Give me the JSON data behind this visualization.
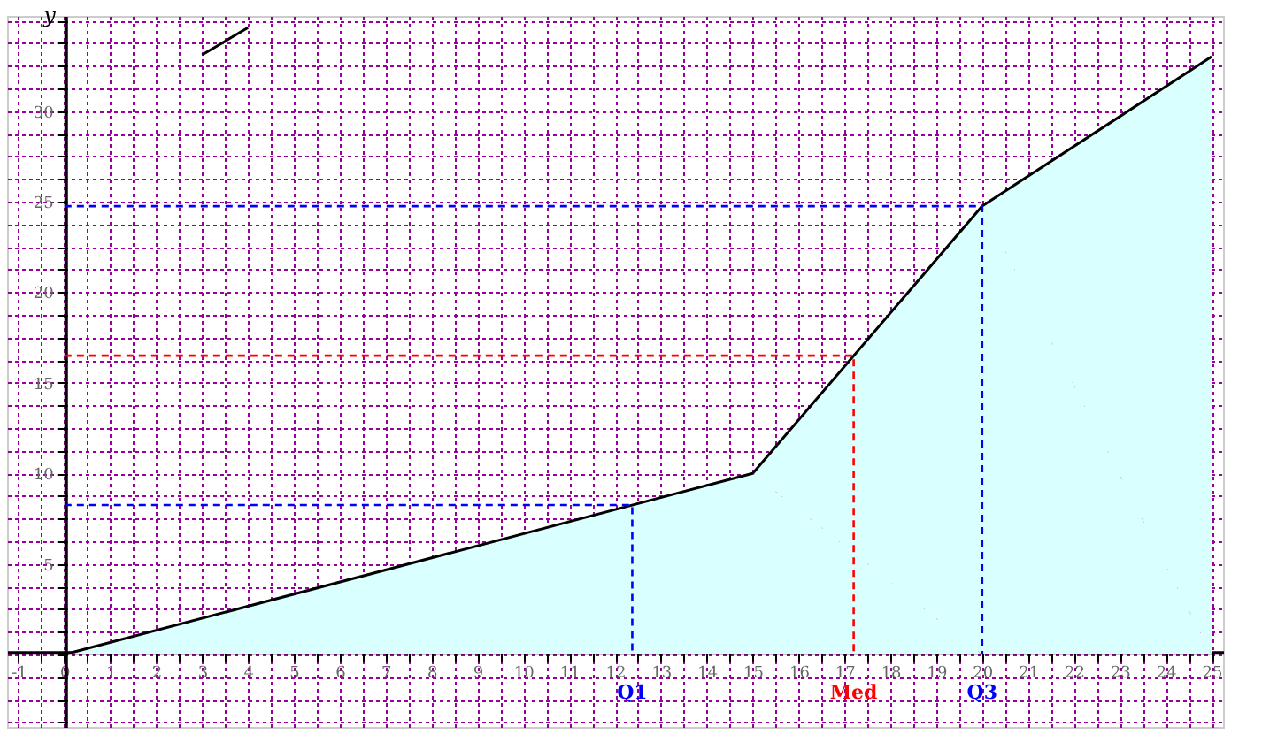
{
  "chart_data": {
    "type": "area",
    "ylabel": "y",
    "x": [
      0,
      15,
      20,
      25
    ],
    "series": [
      {
        "color": "#000000",
        "values": [
          0,
          10,
          24.75,
          33
        ]
      },
      {
        "type": "line",
        "x": [
          3,
          4
        ],
        "color": "#000000",
        "values": [
          33.1,
          34.6
        ]
      },
      {
        "type": "line",
        "x": [
          0,
          12.375,
          12.375
        ],
        "color": "#0000ff",
        "line_style": "dashed",
        "values": [
          8.25,
          8.25,
          0
        ]
      },
      {
        "type": "line",
        "x": [
          0,
          17.2,
          17.2
        ],
        "color": "#ff0000",
        "line_style": "dashed",
        "values": [
          16.5,
          16.5,
          0
        ]
      },
      {
        "type": "line",
        "x": [
          0,
          20,
          20
        ],
        "color": "#0000ff",
        "line_style": "dashed",
        "values": [
          24.75,
          24.75,
          0
        ]
      }
    ],
    "annotations": [
      "Q1",
      "Med",
      "Q3"
    ],
    "xlim": [
      -1.25,
      25.25
    ],
    "ylim": [
      -4,
      35.25
    ],
    "xticks": [
      -1,
      {
        "value": -0.5,
        "label": null
      },
      0,
      {
        "value": 0.5,
        "label": null
      },
      1,
      {
        "value": 1.5,
        "label": null
      },
      2,
      {
        "value": 2.5,
        "label": null
      },
      3,
      {
        "value": 3.5,
        "label": null
      },
      4,
      {
        "value": 4.5,
        "label": null
      },
      5,
      {
        "value": 5.5,
        "label": null
      },
      6,
      {
        "value": 6.5,
        "label": null
      },
      7,
      {
        "value": 7.5,
        "label": null
      },
      8,
      {
        "value": 8.5,
        "label": null
      },
      9,
      {
        "value": 9.5,
        "label": null
      },
      10,
      {
        "value": 10.5,
        "label": null
      },
      11,
      {
        "value": 11.5,
        "label": null
      },
      12,
      {
        "value": 12.5,
        "label": null
      },
      13,
      {
        "value": 13.5,
        "label": null
      },
      14,
      {
        "value": 14.5,
        "label": null
      },
      15,
      {
        "value": 15.5,
        "label": null
      },
      16,
      {
        "value": 16.5,
        "label": null
      },
      17,
      {
        "value": 17.5,
        "label": null
      },
      18,
      {
        "value": 18.5,
        "label": null
      },
      19,
      {
        "value": 19.5,
        "label": null
      },
      20,
      {
        "value": 20.5,
        "label": null
      },
      21,
      {
        "value": 21.5,
        "label": null
      },
      22,
      {
        "value": 22.5,
        "label": null
      },
      23,
      {
        "value": 23.5,
        "label": null
      },
      24,
      {
        "value": 24.5,
        "label": null
      },
      25
    ],
    "yticks": [
      {
        "value": -3.75,
        "label": null
      },
      {
        "value": -2.5,
        "label": null
      },
      {
        "value": -1.25,
        "label": null
      },
      {
        "value": 0,
        "label": null
      },
      {
        "value": 1.25,
        "label": null
      },
      {
        "value": 2.5,
        "label": null
      },
      {
        "value": 3.75,
        "label": null
      },
      5,
      {
        "value": 6.25,
        "label": null
      },
      {
        "value": 7.5,
        "label": null
      },
      {
        "value": 8.75,
        "label": null
      },
      10,
      {
        "value": 11.25,
        "label": null
      },
      {
        "value": 12.5,
        "label": null
      },
      {
        "value": 13.75,
        "label": null
      },
      15,
      {
        "value": 16.25,
        "label": null
      },
      {
        "value": 17.5,
        "label": null
      },
      {
        "value": 18.75,
        "label": null
      },
      20,
      {
        "value": 21.25,
        "label": null
      },
      {
        "value": 22.5,
        "label": null
      },
      {
        "value": 23.75,
        "label": null
      },
      25,
      {
        "value": 26.25,
        "label": null
      },
      {
        "value": 27.5,
        "label": null
      },
      {
        "value": 28.75,
        "label": null
      },
      30,
      {
        "value": 31.25,
        "label": null
      },
      {
        "value": 32.5,
        "label": null
      },
      {
        "value": 33.75,
        "label": null
      },
      {
        "value": 35,
        "label": null
      }
    ],
    "grid": true
  }
}
